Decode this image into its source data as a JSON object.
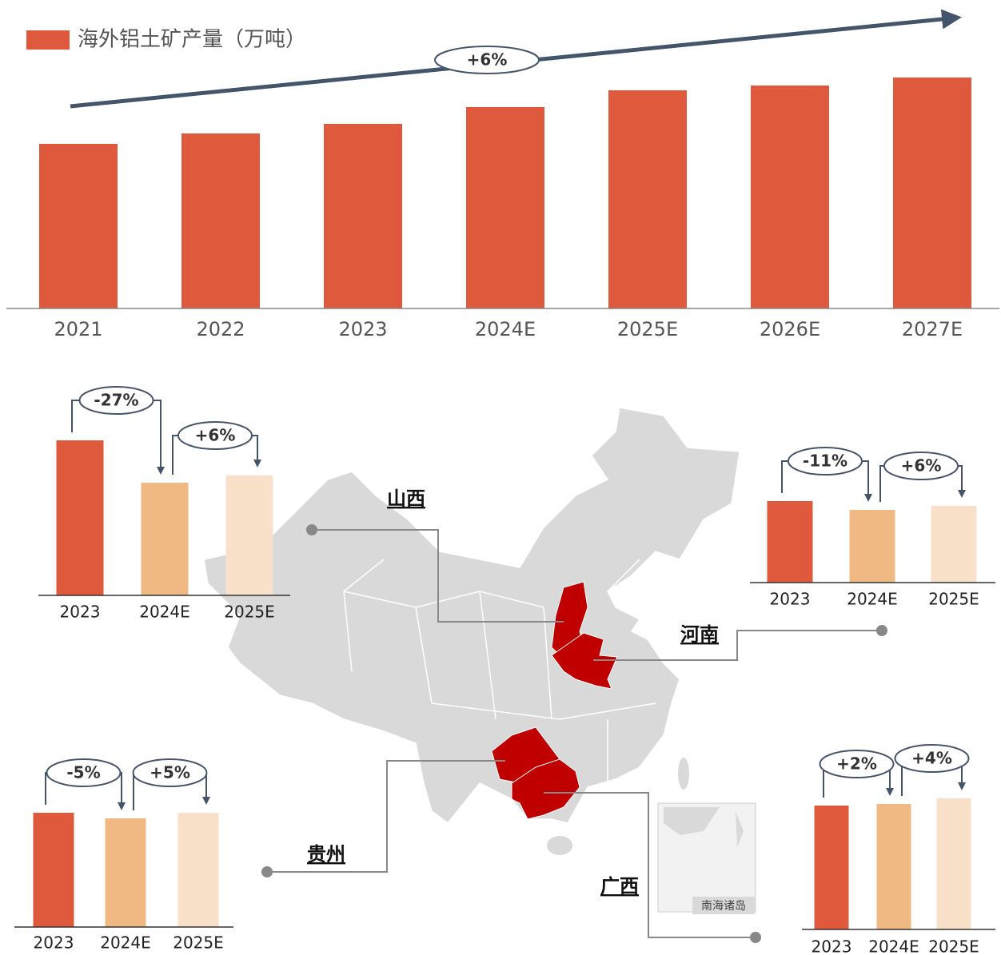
{
  "chart_data": [
    {
      "type": "bar",
      "series_name": "海外铝土矿产量（万吨）",
      "color": "#df5a3c",
      "categories": [
        "2021",
        "2022",
        "2023",
        "2024E",
        "2025E",
        "2026E",
        "2027E"
      ],
      "values": [
        206,
        219,
        231,
        252,
        273,
        279,
        289
      ],
      "annotations": [
        "+6%"
      ]
    },
    {
      "type": "bar",
      "title": "山西",
      "categories": [
        "2023",
        "2024E",
        "2025E"
      ],
      "values": [
        194,
        141,
        150
      ],
      "colors": [
        "#df5a3c",
        "#f0b983",
        "#f8e1c8"
      ],
      "annotations": [
        "-27%",
        "+6%"
      ]
    },
    {
      "type": "bar",
      "title": "河南",
      "categories": [
        "2023",
        "2024E",
        "2025E"
      ],
      "values": [
        102,
        91,
        96
      ],
      "colors": [
        "#df5a3c",
        "#f0b983",
        "#f8e1c8"
      ],
      "annotations": [
        "-11%",
        "+6%"
      ]
    },
    {
      "type": "bar",
      "title": "贵州",
      "categories": [
        "2023",
        "2024E",
        "2025E"
      ],
      "values": [
        143,
        136,
        143
      ],
      "colors": [
        "#df5a3c",
        "#f0b983",
        "#f8e1c8"
      ],
      "annotations": [
        "-5%",
        "+5%"
      ]
    },
    {
      "type": "bar",
      "title": "广西",
      "categories": [
        "2023",
        "2024E",
        "2025E"
      ],
      "values": [
        155,
        157,
        164
      ],
      "colors": [
        "#df5a3c",
        "#f0b983",
        "#f8e1c8"
      ],
      "annotations": [
        "+2%",
        "+4%"
      ]
    }
  ],
  "map": {
    "inset_label": "南海诸岛"
  }
}
